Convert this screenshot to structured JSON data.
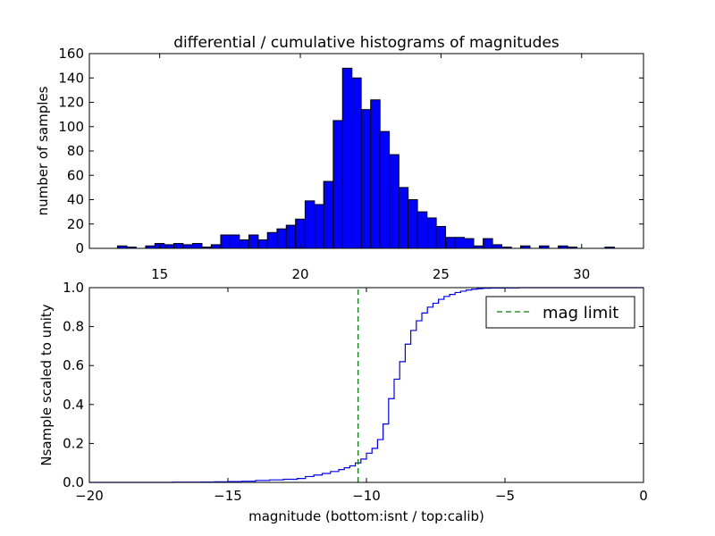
{
  "figure": {
    "title": "differential / cumulative histograms of magnitudes"
  },
  "chart_data": [
    {
      "type": "bar",
      "title": "differential / cumulative histograms of magnitudes",
      "xlabel": "",
      "ylabel": "number of samples",
      "xlim": [
        12.5,
        32.2
      ],
      "ylim": [
        0,
        160
      ],
      "xticks": [
        15,
        20,
        25,
        30
      ],
      "yticks": [
        0,
        20,
        40,
        60,
        80,
        100,
        120,
        140,
        160
      ],
      "grid": false,
      "bar_color": "#0000ff",
      "bins_left_edges": [
        13.5,
        13.83,
        14.5,
        14.83,
        15.17,
        15.5,
        15.83,
        16.17,
        16.5,
        16.83,
        17.17,
        17.5,
        17.83,
        18.17,
        18.5,
        18.83,
        19.17,
        19.5,
        19.83,
        20.17,
        20.5,
        20.83,
        21.17,
        21.5,
        21.83,
        22.17,
        22.5,
        22.83,
        23.17,
        23.5,
        23.83,
        24.17,
        24.5,
        24.83,
        25.17,
        25.5,
        25.83,
        26.17,
        26.5,
        26.83,
        27.17,
        27.5,
        27.83,
        28.17,
        28.5,
        28.83,
        29.17,
        29.5,
        29.83,
        30.17,
        30.5,
        30.83
      ],
      "bin_width": 0.3333,
      "values": [
        2,
        1,
        2,
        4,
        3,
        4,
        3,
        4,
        1,
        3,
        11,
        11,
        7,
        11,
        7,
        13,
        16,
        19,
        24,
        39,
        36,
        55,
        105,
        148,
        140,
        114,
        122,
        96,
        77,
        50,
        40,
        30,
        25,
        18,
        9,
        9,
        8,
        2,
        8,
        3,
        1,
        0,
        2,
        0,
        2,
        0,
        2,
        1,
        0,
        0,
        0,
        1
      ]
    },
    {
      "type": "line",
      "drawstyle": "steps",
      "title": "",
      "xlabel": "magnitude (bottom:isnt / top:calib)",
      "ylabel": "Nsample scaled to unity",
      "xlim": [
        -20,
        0
      ],
      "ylim": [
        0.0,
        1.0
      ],
      "xticks": [
        -20,
        -15,
        -10,
        -5,
        0
      ],
      "yticks": [
        0.0,
        0.2,
        0.4,
        0.6,
        0.8,
        1.0
      ],
      "ytick_labels": [
        "0.0",
        "0.2",
        "0.4",
        "0.6",
        "0.8",
        "1.0"
      ],
      "grid": false,
      "legend_position": "upper right",
      "series": [
        {
          "color": "#0000ff",
          "x": [
            -20,
            -17.0,
            -16.0,
            -15.5,
            -15.0,
            -14.5,
            -14.0,
            -13.5,
            -13.0,
            -12.5,
            -12.2,
            -11.9,
            -11.6,
            -11.3,
            -11.0,
            -10.8,
            -10.6,
            -10.4,
            -10.2,
            -10.0,
            -9.8,
            -9.6,
            -9.4,
            -9.2,
            -9.0,
            -8.8,
            -8.6,
            -8.4,
            -8.2,
            -8.0,
            -7.8,
            -7.6,
            -7.4,
            -7.2,
            -7.0,
            -6.8,
            -6.6,
            -6.4,
            -6.2,
            -6.0,
            -5.8,
            -5.5,
            -5.0,
            -4.5,
            -4.0,
            -3.5,
            0
          ],
          "y": [
            0.0,
            0.001,
            0.002,
            0.003,
            0.004,
            0.006,
            0.01,
            0.013,
            0.016,
            0.02,
            0.03,
            0.038,
            0.046,
            0.056,
            0.066,
            0.075,
            0.085,
            0.1,
            0.12,
            0.15,
            0.175,
            0.22,
            0.3,
            0.43,
            0.53,
            0.62,
            0.71,
            0.78,
            0.83,
            0.87,
            0.9,
            0.92,
            0.94,
            0.955,
            0.965,
            0.975,
            0.982,
            0.988,
            0.992,
            0.995,
            0.997,
            0.998,
            0.999,
            1.0,
            1.0,
            1.0,
            1.0
          ]
        },
        {
          "name": "mag limit",
          "color": "#008000",
          "linestyle": "dashed",
          "x": [
            -10.3,
            -10.3
          ],
          "y": [
            0.0,
            1.0
          ]
        }
      ]
    }
  ]
}
